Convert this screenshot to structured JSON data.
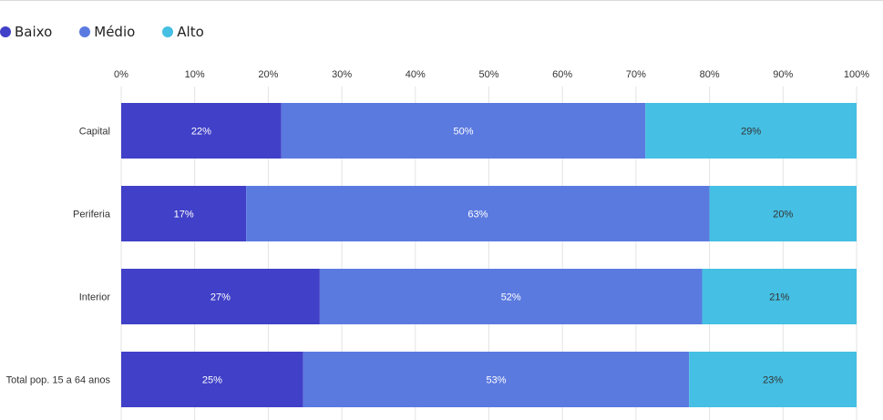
{
  "chart_data": {
    "type": "bar",
    "orientation": "horizontal",
    "stacked": "percent",
    "categories": [
      "Capital",
      "Periferia",
      "Interior",
      "Total pop. 15 a 64 anos"
    ],
    "series": [
      {
        "name": "Baixo",
        "values": [
          22,
          17,
          27,
          25
        ],
        "labels": [
          "22%",
          "17%",
          "27%",
          "25%"
        ],
        "color": "#4040c8",
        "label_color": "#ffffff"
      },
      {
        "name": "Médio",
        "values": [
          50,
          63,
          52,
          53
        ],
        "labels": [
          "50%",
          "63%",
          "52%",
          "53%"
        ],
        "color": "#5b7ae0",
        "label_color": "#ffffff"
      },
      {
        "name": "Alto",
        "values": [
          29,
          20,
          21,
          23
        ],
        "labels": [
          "29%",
          "20%",
          "21%",
          "23%"
        ],
        "color": "#45bfe3",
        "label_color": "#333333"
      }
    ],
    "x_ticks": [
      "0%",
      "10%",
      "20%",
      "30%",
      "40%",
      "50%",
      "60%",
      "70%",
      "80%",
      "90%",
      "100%"
    ],
    "xlim": [
      0,
      100
    ],
    "grid": true,
    "legend_position": "top-left",
    "title": "",
    "xlabel": "",
    "ylabel": ""
  }
}
